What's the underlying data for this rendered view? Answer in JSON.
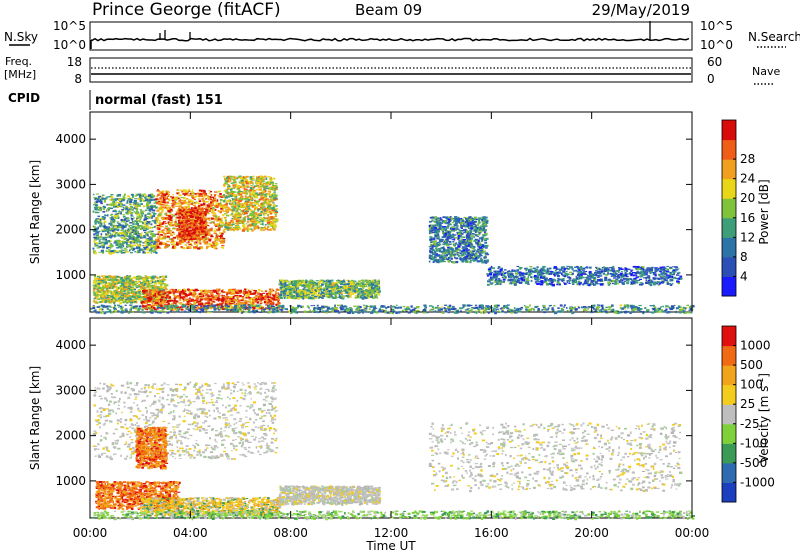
{
  "header": {
    "station": "Prince George (fitACF)",
    "beam": "Beam 09",
    "date": "29/May/2019"
  },
  "sky_panel": {
    "left_label": "N.Sky",
    "right_label": "N.Search",
    "left_ticks": [
      "10^5",
      "10^0"
    ],
    "right_ticks": [
      "10^5",
      "10^0"
    ]
  },
  "freq_panel": {
    "left_label_1": "Freq.",
    "left_label_2": "[MHz]",
    "right_label": "Nave",
    "left_ticks": [
      "18",
      "8"
    ],
    "right_ticks": [
      "60",
      "0"
    ]
  },
  "cpid": {
    "label": "CPID",
    "mode": "normal (fast) 151"
  },
  "time_axis": {
    "label": "Time UT",
    "ticks": [
      "00:00",
      "04:00",
      "08:00",
      "12:00",
      "16:00",
      "20:00",
      "00:00"
    ]
  },
  "chart_data": [
    {
      "type": "heatmap",
      "name": "power",
      "ylabel": "Slant Range [km]",
      "yticks": [
        1000,
        2000,
        3000,
        4000
      ],
      "ylim": [
        180,
        4600
      ],
      "xlim_hours": [
        0,
        24
      ],
      "colorbar_label": "Power [dB]",
      "colorbar_ticks": [
        "4",
        "8",
        "12",
        "16",
        "20",
        "24",
        "28"
      ],
      "colorbar_colors": [
        "#1a1aff",
        "#2c4fb5",
        "#2e73a8",
        "#3f9e7a",
        "#80c23c",
        "#e8d619",
        "#f0a01e",
        "#ef5d19",
        "#d80b0b"
      ],
      "echo_regions": [
        {
          "t0": 0.1,
          "t1": 2.6,
          "r0": 1500,
          "r1": 2800,
          "level": 0.4
        },
        {
          "t0": 2.6,
          "t1": 5.3,
          "r0": 1600,
          "r1": 2900,
          "level": 0.75
        },
        {
          "t0": 3.5,
          "t1": 4.6,
          "r0": 1800,
          "r1": 2500,
          "level": 0.9
        },
        {
          "t0": 5.3,
          "t1": 7.4,
          "r0": 2000,
          "r1": 3200,
          "level": 0.6
        },
        {
          "t0": 0.1,
          "t1": 3.0,
          "r0": 400,
          "r1": 1000,
          "level": 0.55
        },
        {
          "t0": 2.0,
          "t1": 7.5,
          "r0": 250,
          "r1": 700,
          "level": 0.85
        },
        {
          "t0": 7.5,
          "t1": 11.5,
          "r0": 500,
          "r1": 900,
          "level": 0.45
        },
        {
          "t0": 13.5,
          "t1": 15.8,
          "r0": 1300,
          "r1": 2300,
          "level": 0.3
        },
        {
          "t0": 15.8,
          "t1": 23.5,
          "r0": 800,
          "r1": 1200,
          "level": 0.25
        },
        {
          "t0": 0.0,
          "t1": 24.0,
          "r0": 180,
          "r1": 350,
          "level": 0.35
        }
      ]
    },
    {
      "type": "heatmap",
      "name": "velocity",
      "ylabel": "Slant Range [km]",
      "yticks": [
        1000,
        2000,
        3000,
        4000
      ],
      "ylim": [
        180,
        4600
      ],
      "xlim_hours": [
        0,
        24
      ],
      "colorbar_label": "Velocity [m s^-1]",
      "colorbar_ticks": [
        "1000",
        "500",
        "100",
        "25",
        "-25",
        "-100",
        "-500",
        "-1000"
      ],
      "colorbar_colors": [
        "#1c3fbf",
        "#2f6bb0",
        "#3a9a56",
        "#7fd13b",
        "#bebebe",
        "#f2cc1f",
        "#f2a41c",
        "#f06a14",
        "#e01010"
      ],
      "echo_regions": [
        {
          "t0": 0.1,
          "t1": 7.4,
          "r0": 1500,
          "r1": 3200,
          "class": "ground"
        },
        {
          "t0": 1.8,
          "t1": 3.0,
          "r0": 1300,
          "r1": 2200,
          "class": "away"
        },
        {
          "t0": 0.2,
          "t1": 3.5,
          "r0": 400,
          "r1": 1000,
          "class": "away"
        },
        {
          "t0": 2.0,
          "t1": 7.5,
          "r0": 250,
          "r1": 650,
          "class": "away-weak"
        },
        {
          "t0": 7.5,
          "t1": 11.5,
          "r0": 500,
          "r1": 900,
          "class": "ground"
        },
        {
          "t0": 13.5,
          "t1": 23.5,
          "r0": 800,
          "r1": 2300,
          "class": "ground"
        },
        {
          "t0": 0.0,
          "t1": 24.0,
          "r0": 180,
          "r1": 350,
          "class": "toward"
        }
      ]
    }
  ]
}
